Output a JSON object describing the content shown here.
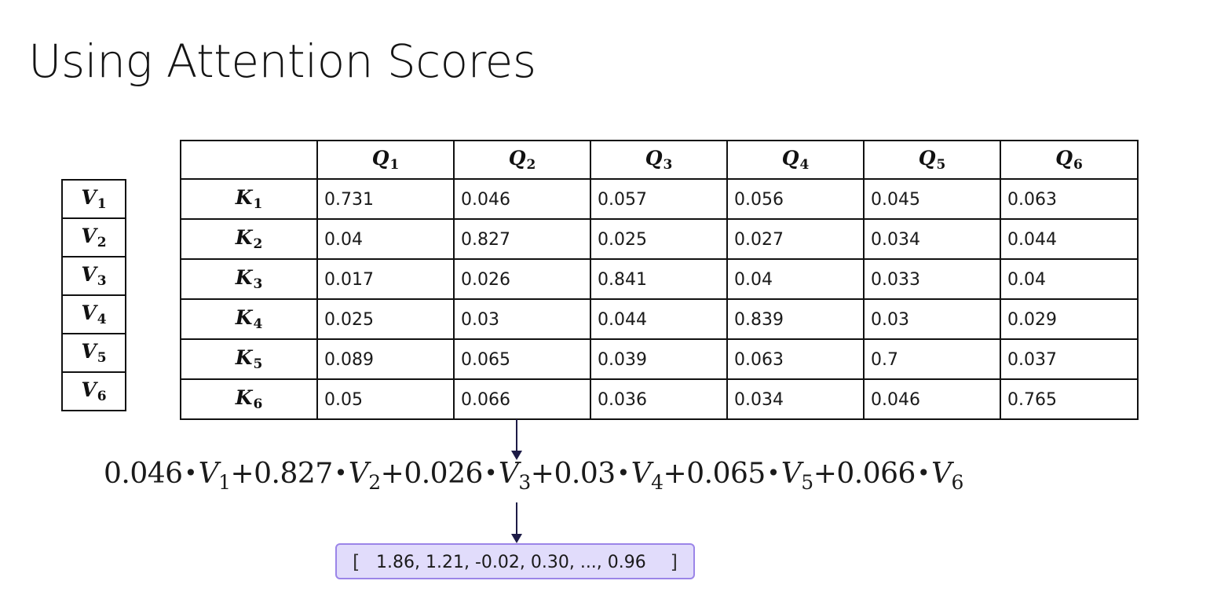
{
  "title": "Using Attention Scores",
  "value_labels": [
    {
      "letter": "V",
      "index": "1"
    },
    {
      "letter": "V",
      "index": "2"
    },
    {
      "letter": "V",
      "index": "3"
    },
    {
      "letter": "V",
      "index": "4"
    },
    {
      "letter": "V",
      "index": "5"
    },
    {
      "letter": "V",
      "index": "6"
    }
  ],
  "table": {
    "columns": [
      {
        "letter": "Q",
        "index": "1"
      },
      {
        "letter": "Q",
        "index": "2"
      },
      {
        "letter": "Q",
        "index": "3"
      },
      {
        "letter": "Q",
        "index": "4"
      },
      {
        "letter": "Q",
        "index": "5"
      },
      {
        "letter": "Q",
        "index": "6"
      }
    ],
    "rows": [
      {
        "letter": "K",
        "index": "1",
        "cells": [
          "0.731",
          "0.046",
          "0.057",
          "0.056",
          "0.045",
          "0.063"
        ]
      },
      {
        "letter": "K",
        "index": "2",
        "cells": [
          "0.04",
          "0.827",
          "0.025",
          "0.027",
          "0.034",
          "0.044"
        ]
      },
      {
        "letter": "K",
        "index": "3",
        "cells": [
          "0.017",
          "0.026",
          "0.841",
          "0.04",
          "0.033",
          "0.04"
        ]
      },
      {
        "letter": "K",
        "index": "4",
        "cells": [
          "0.025",
          "0.03",
          "0.044",
          "0.839",
          "0.03",
          "0.029"
        ]
      },
      {
        "letter": "K",
        "index": "5",
        "cells": [
          "0.089",
          "0.065",
          "0.039",
          "0.063",
          "0.7",
          "0.037"
        ]
      },
      {
        "letter": "K",
        "index": "6",
        "cells": [
          "0.05",
          "0.066",
          "0.036",
          "0.034",
          "0.046",
          "0.765"
        ]
      }
    ]
  },
  "formula": {
    "terms": [
      {
        "coef": "0.046",
        "letter": "V",
        "index": "1"
      },
      {
        "coef": "0.827",
        "letter": "V",
        "index": "2"
      },
      {
        "coef": "0.026",
        "letter": "V",
        "index": "3"
      },
      {
        "coef": "0.03",
        "letter": "V",
        "index": "4"
      },
      {
        "coef": "0.065",
        "letter": "V",
        "index": "5"
      },
      {
        "coef": "0.066",
        "letter": "V",
        "index": "6"
      }
    ],
    "operator": "+",
    "multiply_symbol": "•"
  },
  "result": {
    "open_bracket": "[",
    "values": "1.86, 1.21, -0.02, 0.30, ..., 0.96",
    "close_bracket": "]"
  },
  "colors": {
    "arrow": "#1d1b46",
    "result_fill": "#e1dcfb",
    "result_border": "#9b85e8"
  }
}
